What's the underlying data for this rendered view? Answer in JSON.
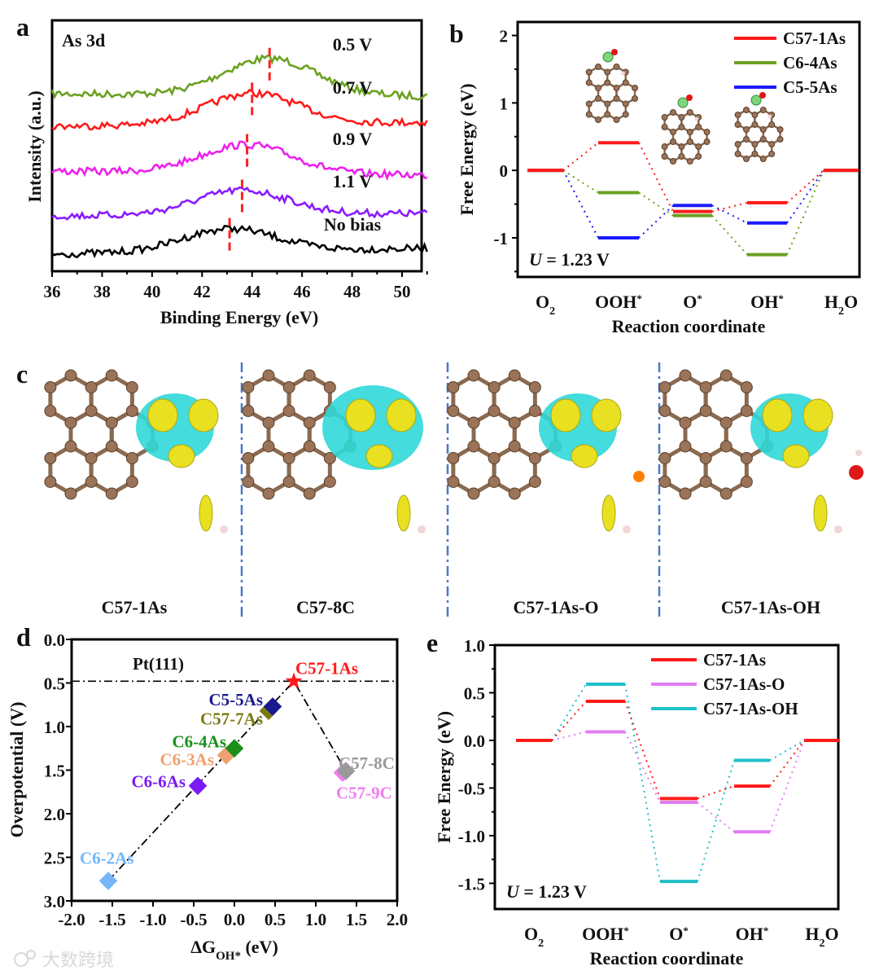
{
  "panels": {
    "a": "a",
    "b": "b",
    "c": "c",
    "d": "d",
    "e": "e"
  },
  "watermark": "大数跨境",
  "chart_data": [
    {
      "id": "a",
      "type": "line",
      "title": "As 3d",
      "xlabel": "Binding Energy (eV)",
      "ylabel": "Intensity (a.u.)",
      "xlim": [
        36,
        51
      ],
      "xticks": [
        36,
        38,
        40,
        42,
        44,
        46,
        48,
        50
      ],
      "series": [
        {
          "name": "0.5 V",
          "color": "#6aa121",
          "peak": 44.7,
          "offset": 4
        },
        {
          "name": "0.7 V",
          "color": "#ff1a1a",
          "peak": 44.0,
          "offset": 3
        },
        {
          "name": "0.9 V",
          "color": "#ee20ee",
          "peak": 43.8,
          "offset": 2
        },
        {
          "name": "1.1 V",
          "color": "#8a1aff",
          "peak": 43.6,
          "offset": 1
        },
        {
          "name": "No bias",
          "color": "#000000",
          "peak": 43.1,
          "offset": 0
        }
      ],
      "marker_color": "#ff2020"
    },
    {
      "id": "b",
      "type": "line",
      "title": "",
      "xlabel": "Reaction coordinate",
      "ylabel": "Free Energy (eV)",
      "ylim": [
        -1.6,
        2.2
      ],
      "yticks": [
        -1,
        0,
        1,
        2
      ],
      "annotation": {
        "italic": "U",
        "rest": " = 1.23 V"
      },
      "categories": [
        {
          "base": "O",
          "sub": "2",
          "sup": "",
          "tail": ""
        },
        {
          "base": "OOH",
          "sub": "",
          "sup": "*",
          "tail": ""
        },
        {
          "base": "O",
          "sub": "",
          "sup": "*",
          "tail": ""
        },
        {
          "base": "OH",
          "sub": "",
          "sup": "*",
          "tail": ""
        },
        {
          "base": "H",
          "sub": "2",
          "sup": "",
          "tail": "O"
        }
      ],
      "series": [
        {
          "name": "C57-1As",
          "color": "#ff1a1a",
          "values": [
            0,
            0.41,
            -0.61,
            -0.48,
            0
          ]
        },
        {
          "name": "C6-4As",
          "color": "#6aa121",
          "values": [
            0,
            -0.33,
            -0.67,
            -1.25,
            0
          ]
        },
        {
          "name": "C5-5As",
          "color": "#1a1aff",
          "values": [
            0,
            -1.0,
            -0.52,
            -0.78,
            0
          ]
        }
      ],
      "legend": "top-right"
    },
    {
      "id": "d",
      "type": "scatter",
      "xlabel": {
        "base": "ΔG",
        "sub": "OH*",
        "rest": " (eV)"
      },
      "ylabel": "Overpotential (V)",
      "xlim": [
        -2.0,
        2.0
      ],
      "ylim": [
        0.0,
        3.0
      ],
      "y_inverted": true,
      "xticks": [
        "-2.0",
        "-1.5",
        "-1.0",
        "-0.5",
        "0.0",
        "0.5",
        "1.0",
        "1.5",
        "2.0"
      ],
      "yticks": [
        "0.0",
        "0.5",
        "1.0",
        "1.5",
        "2.0",
        "2.5",
        "3.0"
      ],
      "reference": {
        "name": "Pt(111)",
        "y": 0.48
      },
      "points": [
        {
          "name": "C6-2As",
          "x": -1.55,
          "y": 2.77,
          "color": "#74b6f7",
          "marker": "diamond"
        },
        {
          "name": "C6-6As",
          "x": -0.45,
          "y": 1.68,
          "color": "#7b1af5",
          "marker": "diamond"
        },
        {
          "name": "C6-3As",
          "x": -0.1,
          "y": 1.33,
          "color": "#f0a070",
          "marker": "diamond"
        },
        {
          "name": "C6-4As",
          "x": 0.0,
          "y": 1.25,
          "color": "#1a8f1a",
          "marker": "diamond"
        },
        {
          "name": "C57-7As",
          "x": 0.42,
          "y": 0.82,
          "color": "#7a7a12",
          "marker": "diamond"
        },
        {
          "name": "C5-5As",
          "x": 0.47,
          "y": 0.77,
          "color": "#1a1a8f",
          "marker": "diamond"
        },
        {
          "name": "C57-1As",
          "x": 0.73,
          "y": 0.48,
          "color": "#ff1a1a",
          "marker": "star"
        },
        {
          "name": "C57-9C",
          "x": 1.33,
          "y": 1.53,
          "color": "#f07cf0",
          "marker": "diamond"
        },
        {
          "name": "C57-8C",
          "x": 1.37,
          "y": 1.51,
          "color": "#999999",
          "marker": "diamond"
        }
      ]
    },
    {
      "id": "e",
      "type": "line",
      "xlabel": "Reaction coordinate",
      "ylabel": "Free Energy (eV)",
      "ylim": [
        -1.77,
        1.0
      ],
      "yticks": [
        "1.0",
        "0.5",
        "0.0",
        "-0.5",
        "-1.0",
        "-1.5"
      ],
      "annotation": {
        "italic": "U",
        "rest": " = 1.23 V"
      },
      "categories": [
        {
          "base": "O",
          "sub": "2",
          "sup": "",
          "tail": ""
        },
        {
          "base": "OOH",
          "sub": "",
          "sup": "*",
          "tail": ""
        },
        {
          "base": "O",
          "sub": "",
          "sup": "*",
          "tail": ""
        },
        {
          "base": "OH",
          "sub": "",
          "sup": "*",
          "tail": ""
        },
        {
          "base": "H",
          "sub": "2",
          "sup": "",
          "tail": "O"
        }
      ],
      "series": [
        {
          "name": "C57-1As",
          "color": "#ff1a1a",
          "values": [
            0,
            0.41,
            -0.61,
            -0.48,
            0
          ]
        },
        {
          "name": "C57-1As-O",
          "color": "#e07cf0",
          "values": [
            0,
            0.09,
            -0.65,
            -0.96,
            0
          ]
        },
        {
          "name": "C57-1As-OH",
          "color": "#20c0c8",
          "values": [
            0,
            0.59,
            -1.48,
            -0.21,
            0
          ]
        }
      ],
      "legend": "top-right"
    }
  ],
  "panel_c": {
    "structures": [
      "C57-1As",
      "C57-8C",
      "C57-1As-O",
      "C57-1As-OH"
    ]
  }
}
